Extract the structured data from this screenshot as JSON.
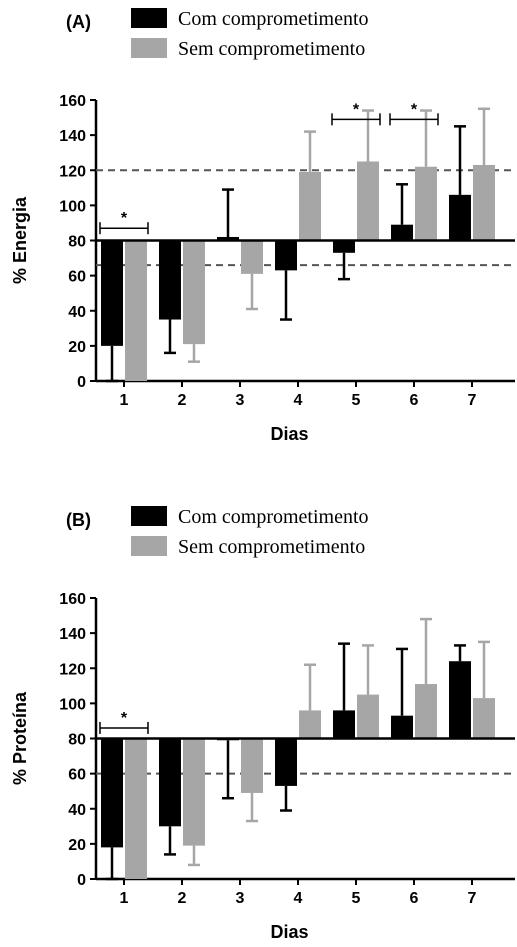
{
  "colors": {
    "series_with": "#000000",
    "series_without": "#a6a6a6",
    "reference_line": "#555555"
  },
  "chart_data": [
    {
      "type": "bar",
      "panel_label": "(A)",
      "xlabel": "Dias",
      "ylabel": "% Energia",
      "ylim": [
        0,
        160
      ],
      "yticks": [
        0,
        20,
        40,
        60,
        80,
        100,
        120,
        140,
        160
      ],
      "baseline": 80,
      "reference_lines": [
        120,
        66
      ],
      "categories": [
        "1",
        "2",
        "3",
        "4",
        "5",
        "6",
        "7"
      ],
      "series": [
        {
          "name": "Com comprometimento",
          "values": [
            20,
            35,
            82,
            63,
            73,
            89,
            106
          ],
          "errors": [
            20,
            19,
            27,
            28,
            15,
            23,
            39
          ]
        },
        {
          "name": "Sem comprometimento",
          "values": [
            0,
            21,
            61,
            119,
            125,
            122,
            123
          ],
          "errors": [
            0,
            10,
            20,
            23,
            29,
            32,
            32
          ]
        }
      ],
      "significance": [
        {
          "label": "*",
          "from": "1",
          "to": "1",
          "y": 87
        },
        {
          "label": "*",
          "from": "5",
          "to": "5",
          "y": 149
        },
        {
          "label": "*",
          "from": "6",
          "to": "6",
          "y": 149
        }
      ]
    },
    {
      "type": "bar",
      "panel_label": "(B)",
      "xlabel": "Dias",
      "ylabel": "% Proteína",
      "ylim": [
        0,
        160
      ],
      "yticks": [
        0,
        20,
        40,
        60,
        80,
        100,
        120,
        140,
        160
      ],
      "baseline": 80,
      "reference_lines": [
        60
      ],
      "categories": [
        "1",
        "2",
        "3",
        "4",
        "5",
        "6",
        "7"
      ],
      "series": [
        {
          "name": "Com comprometimento",
          "values": [
            18,
            30,
            79,
            53,
            96,
            93,
            124
          ],
          "errors": [
            18,
            16,
            33,
            14,
            38,
            38,
            9
          ]
        },
        {
          "name": "Sem comprometimento",
          "values": [
            0,
            19,
            49,
            96,
            105,
            111,
            103
          ],
          "errors": [
            0,
            11,
            16,
            26,
            28,
            37,
            32
          ]
        }
      ],
      "significance": [
        {
          "label": "*",
          "from": "1",
          "to": "1",
          "y": 86
        }
      ]
    }
  ]
}
